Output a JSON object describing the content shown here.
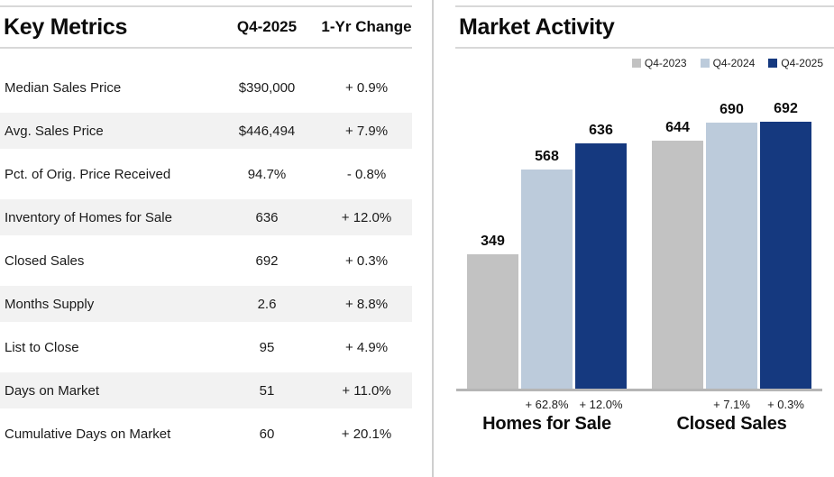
{
  "left_panel": {
    "title": "Key Metrics",
    "columns": [
      "Q4-2025",
      "1-Yr Change"
    ],
    "rows": [
      {
        "metric": "Median Sales Price",
        "value": "$390,000",
        "change": "+ 0.9%"
      },
      {
        "metric": "Avg. Sales Price",
        "value": "$446,494",
        "change": "+ 7.9%"
      },
      {
        "metric": "Pct. of Orig. Price Received",
        "value": "94.7%",
        "change": "- 0.8%"
      },
      {
        "metric": "Inventory of Homes for Sale",
        "value": "636",
        "change": "+ 12.0%"
      },
      {
        "metric": "Closed Sales",
        "value": "692",
        "change": "+ 0.3%"
      },
      {
        "metric": "Months Supply",
        "value": "2.6",
        "change": "+ 8.8%"
      },
      {
        "metric": "List to Close",
        "value": "95",
        "change": "+ 4.9%"
      },
      {
        "metric": "Days on Market",
        "value": "51",
        "change": "+ 11.0%"
      },
      {
        "metric": "Cumulative Days on Market",
        "value": "60",
        "change": "+ 20.1%"
      }
    ]
  },
  "right_panel": {
    "title": "Market Activity"
  },
  "chart_data": {
    "type": "bar",
    "title": "Market Activity",
    "categories": [
      "Homes for Sale",
      "Closed Sales"
    ],
    "series": [
      {
        "name": "Q4-2023",
        "color": "#c2c2c2",
        "values": [
          349,
          644
        ]
      },
      {
        "name": "Q4-2024",
        "color": "#bccbdb",
        "values": [
          568,
          690
        ]
      },
      {
        "name": "Q4-2025",
        "color": "#15397f",
        "values": [
          636,
          692
        ]
      }
    ],
    "change_labels": [
      [
        "+ 62.8%",
        "+ 12.0%"
      ],
      [
        "+ 7.1%",
        "+ 0.3%"
      ]
    ],
    "xlabel": "",
    "ylabel": "",
    "ylim": [
      0,
      740
    ],
    "grid": false,
    "legend_position": "top-right",
    "axis_color": "#b5b5b5"
  }
}
